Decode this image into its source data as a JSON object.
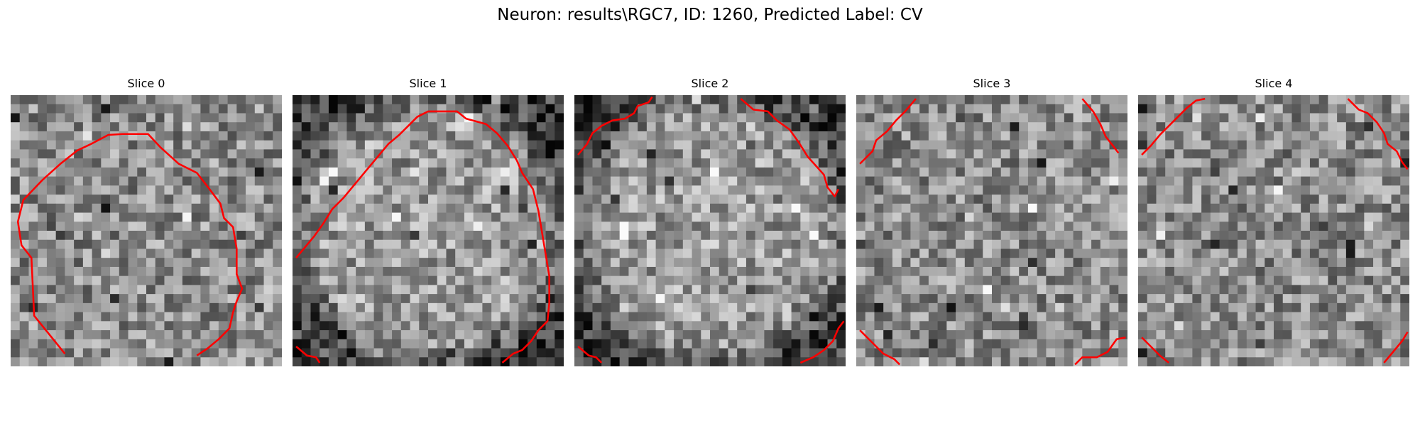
{
  "figure": {
    "title": "Neuron: results\\RGC7, ID: 1260, Predicted Label: CV"
  },
  "colors": {
    "contour": "#ff0000",
    "background": "#ffffff"
  },
  "panels": [
    {
      "title": "Slice 0",
      "seed": 11,
      "dark_border": false,
      "contours": [
        [
          [
            6.0,
            28.6
          ],
          [
            2.6,
            24.4
          ],
          [
            2.3,
            18.0
          ],
          [
            1.2,
            16.6
          ],
          [
            0.8,
            14.0
          ],
          [
            1.4,
            11.6
          ],
          [
            3.5,
            9.4
          ],
          [
            5.5,
            7.6
          ],
          [
            7.4,
            6.1
          ],
          [
            8.9,
            5.4
          ],
          [
            10.8,
            4.4
          ],
          [
            12.4,
            4.3
          ],
          [
            15.2,
            4.3
          ],
          [
            16.6,
            5.8
          ],
          [
            18.6,
            7.6
          ],
          [
            20.6,
            8.6
          ],
          [
            22.0,
            10.4
          ],
          [
            23.2,
            12.0
          ],
          [
            23.6,
            13.6
          ],
          [
            24.6,
            14.6
          ],
          [
            25.0,
            17.0
          ],
          [
            25.0,
            19.8
          ],
          [
            25.6,
            21.4
          ],
          [
            25.0,
            22.8
          ],
          [
            24.6,
            24.0
          ],
          [
            24.2,
            25.8
          ],
          [
            23.0,
            27.0
          ],
          [
            21.8,
            28.0
          ],
          [
            20.6,
            28.8
          ]
        ]
      ]
    },
    {
      "title": "Slice 1",
      "seed": 23,
      "dark_border": true,
      "contours": [
        [
          [
            0.4,
            18.0
          ],
          [
            1.4,
            16.8
          ],
          [
            2.4,
            15.6
          ],
          [
            3.4,
            14.2
          ],
          [
            4.4,
            12.6
          ],
          [
            5.6,
            11.4
          ],
          [
            6.6,
            10.2
          ],
          [
            7.6,
            9.0
          ],
          [
            8.6,
            7.8
          ],
          [
            9.6,
            6.6
          ],
          [
            10.6,
            5.4
          ],
          [
            11.8,
            4.4
          ],
          [
            12.8,
            3.4
          ],
          [
            13.8,
            2.4
          ],
          [
            15.0,
            1.8
          ],
          [
            16.6,
            1.8
          ],
          [
            18.2,
            1.8
          ],
          [
            19.2,
            2.6
          ],
          [
            21.4,
            3.2
          ],
          [
            22.6,
            4.2
          ],
          [
            23.8,
            5.6
          ],
          [
            24.8,
            7.2
          ],
          [
            25.4,
            8.6
          ],
          [
            26.6,
            10.4
          ],
          [
            27.2,
            12.8
          ],
          [
            27.6,
            15.2
          ],
          [
            28.0,
            17.6
          ],
          [
            28.4,
            20.0
          ],
          [
            28.4,
            23.0
          ],
          [
            28.2,
            25.0
          ],
          [
            27.2,
            26.0
          ],
          [
            26.4,
            27.2
          ],
          [
            25.4,
            28.2
          ],
          [
            24.4,
            28.6
          ],
          [
            23.2,
            29.6
          ]
        ],
        [
          [
            0.4,
            27.8
          ],
          [
            1.6,
            28.8
          ],
          [
            2.6,
            29.0
          ],
          [
            3.0,
            29.6
          ]
        ]
      ]
    },
    {
      "title": "Slice 2",
      "seed": 37,
      "dark_border": true,
      "contours": [
        [
          [
            0.4,
            6.6
          ],
          [
            1.4,
            5.4
          ],
          [
            2.0,
            4.2
          ],
          [
            3.0,
            3.4
          ],
          [
            4.2,
            2.8
          ],
          [
            5.6,
            2.6
          ],
          [
            6.6,
            2.0
          ],
          [
            7.0,
            1.2
          ],
          [
            8.2,
            0.8
          ],
          [
            8.6,
            0.2
          ]
        ],
        [
          [
            18.4,
            0.4
          ],
          [
            19.8,
            1.6
          ],
          [
            21.4,
            1.8
          ],
          [
            22.4,
            2.8
          ],
          [
            23.8,
            3.8
          ],
          [
            24.8,
            5.2
          ],
          [
            25.8,
            6.8
          ],
          [
            27.6,
            8.8
          ],
          [
            28.0,
            10.2
          ],
          [
            28.8,
            11.2
          ],
          [
            29.2,
            10.4
          ]
        ],
        [
          [
            0.4,
            27.8
          ],
          [
            1.6,
            28.8
          ],
          [
            2.4,
            29.0
          ],
          [
            3.0,
            29.6
          ]
        ],
        [
          [
            25.0,
            29.6
          ],
          [
            26.4,
            29.0
          ],
          [
            27.6,
            28.2
          ],
          [
            28.6,
            27.2
          ],
          [
            29.2,
            25.8
          ],
          [
            29.8,
            25.0
          ]
        ]
      ]
    },
    {
      "title": "Slice 3",
      "seed": 53,
      "dark_border": false,
      "contours": [
        [
          [
            0.4,
            7.6
          ],
          [
            1.8,
            6.2
          ],
          [
            2.2,
            5.0
          ],
          [
            3.4,
            4.0
          ],
          [
            4.4,
            2.8
          ],
          [
            5.4,
            1.8
          ],
          [
            6.6,
            0.4
          ]
        ],
        [
          [
            25.0,
            0.4
          ],
          [
            26.2,
            1.8
          ],
          [
            27.0,
            3.2
          ],
          [
            27.6,
            4.6
          ],
          [
            28.4,
            5.6
          ],
          [
            29.0,
            6.4
          ]
        ],
        [
          [
            0.4,
            26.0
          ],
          [
            1.8,
            27.4
          ],
          [
            3.0,
            28.6
          ],
          [
            4.2,
            29.2
          ],
          [
            4.8,
            29.8
          ]
        ],
        [
          [
            24.2,
            29.8
          ],
          [
            25.0,
            29.0
          ],
          [
            26.6,
            29.0
          ],
          [
            27.8,
            28.4
          ],
          [
            28.8,
            27.0
          ],
          [
            29.8,
            26.8
          ]
        ]
      ]
    },
    {
      "title": "Slice 4",
      "seed": 71,
      "dark_border": false,
      "contours": [
        [
          [
            0.4,
            6.6
          ],
          [
            1.4,
            5.6
          ],
          [
            2.4,
            4.4
          ],
          [
            3.4,
            3.4
          ],
          [
            4.4,
            2.4
          ],
          [
            5.4,
            1.4
          ],
          [
            6.4,
            0.6
          ],
          [
            7.4,
            0.4
          ]
        ],
        [
          [
            23.2,
            0.4
          ],
          [
            24.4,
            1.6
          ],
          [
            25.4,
            2.0
          ],
          [
            26.4,
            3.0
          ],
          [
            27.2,
            4.2
          ],
          [
            27.6,
            5.4
          ],
          [
            28.6,
            6.2
          ],
          [
            29.2,
            7.4
          ],
          [
            29.8,
            8.2
          ]
        ],
        [
          [
            0.4,
            26.8
          ],
          [
            1.4,
            27.8
          ],
          [
            2.4,
            28.8
          ],
          [
            3.4,
            29.6
          ]
        ],
        [
          [
            27.2,
            29.6
          ],
          [
            28.2,
            28.4
          ],
          [
            29.2,
            27.2
          ],
          [
            29.8,
            26.2
          ]
        ]
      ]
    }
  ]
}
